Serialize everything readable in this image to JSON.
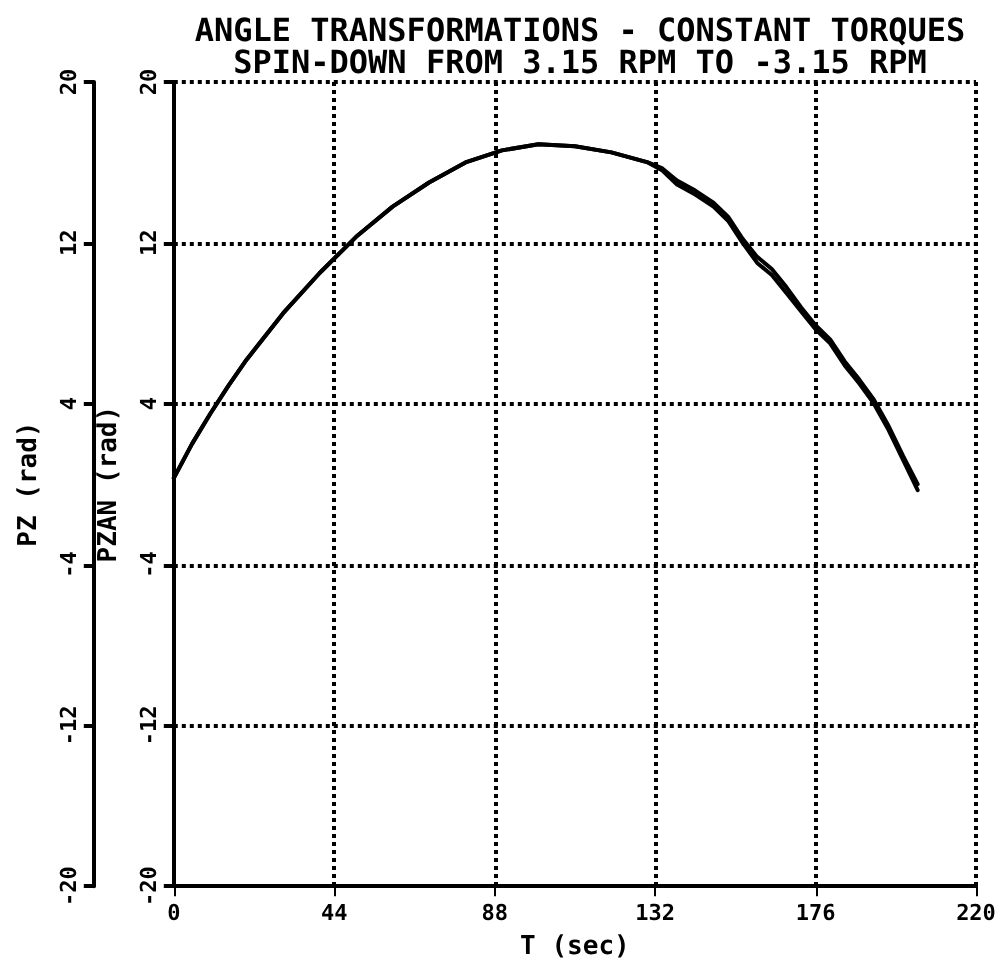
{
  "chart_data": {
    "type": "line",
    "title": "ANGLE TRANSFORMATIONS - CONSTANT TORQUES",
    "subtitle": "SPIN-DOWN FROM 3.15 RPM TO -3.15 RPM",
    "xlabel": "T (sec)",
    "ylabel": "PZ (rad)",
    "y2label": "PZAN (rad)",
    "x": [
      0,
      5,
      10,
      15,
      20,
      30,
      40,
      50,
      60,
      70,
      80,
      90,
      100,
      110,
      120,
      130,
      134,
      138,
      143,
      148,
      152,
      156,
      160,
      164,
      168,
      172,
      176,
      180,
      184,
      188,
      192,
      196,
      200,
      204
    ],
    "series": [
      {
        "color": "#000000",
        "values": [
          0.3,
          2.0,
          3.5,
          4.9,
          6.2,
          8.5,
          10.5,
          12.3,
          13.8,
          15.0,
          16.0,
          16.6,
          16.9,
          16.8,
          16.5,
          16.0,
          15.6,
          14.9,
          14.4,
          13.8,
          13.1,
          12.0,
          11.0,
          10.4,
          9.5,
          8.6,
          7.7,
          7.0,
          5.9,
          5.0,
          4.0,
          2.7,
          1.2,
          -0.3
        ]
      },
      {
        "color": "#000000",
        "axis": "y2",
        "values": [
          0.3,
          2.0,
          3.5,
          4.9,
          6.2,
          8.5,
          10.5,
          12.3,
          13.8,
          15.0,
          16.0,
          16.6,
          16.9,
          16.8,
          16.5,
          16.0,
          15.7,
          15.1,
          14.6,
          14.0,
          13.3,
          12.2,
          11.3,
          10.7,
          9.8,
          8.8,
          7.9,
          7.2,
          6.1,
          5.2,
          4.2,
          2.9,
          1.4,
          0.0
        ]
      }
    ],
    "xlim": [
      0,
      220
    ],
    "xticks": [
      0,
      44,
      88,
      132,
      176,
      220
    ],
    "ylim": [
      -20,
      20
    ],
    "yticks": [
      -20,
      -12,
      -4,
      4,
      12,
      20
    ],
    "y2lim": [
      -20,
      20
    ],
    "y2ticks": [
      -20,
      -12,
      -4,
      4,
      12,
      20
    ],
    "grid": true,
    "marker": "none"
  }
}
